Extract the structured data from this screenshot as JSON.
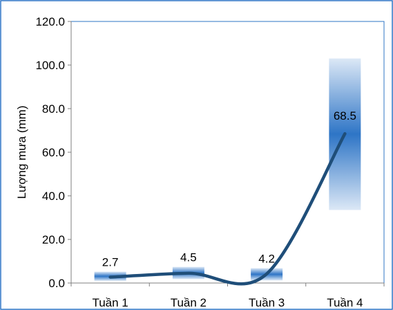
{
  "chart_data": {
    "type": "line",
    "categories": [
      "Tuần 1",
      "Tuần 2",
      "Tuần 3",
      "Tuần 4"
    ],
    "series": [
      {
        "values": [
          2.7,
          4.5,
          4.2,
          68.5
        ],
        "band": [
          [
            1.0,
            5.2
          ],
          [
            1.8,
            7.4
          ],
          [
            1.2,
            6.8
          ],
          [
            33.5,
            103.0
          ]
        ]
      }
    ],
    "data_labels": [
      "2.7",
      "4.5",
      "4.2",
      "68.5"
    ],
    "ylabel": "Lượng mưa (mm)",
    "xlabel": "",
    "ylim": [
      0,
      120
    ],
    "yticks": [
      "0.0",
      "20.0",
      "40.0",
      "60.0",
      "80.0",
      "100.0",
      "120.0"
    ],
    "grid": false,
    "legend": "none",
    "colors": {
      "line": "#1F4E79",
      "band_center": "#2E75C6",
      "band_edge": "#DCE8F6",
      "axis": "#7F7F7F",
      "border": "#2E75C6"
    }
  }
}
